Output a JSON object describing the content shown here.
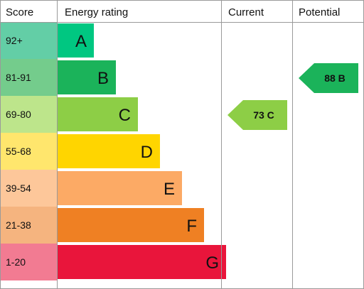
{
  "headers": {
    "score": "Score",
    "energy_rating": "Energy rating",
    "current": "Current",
    "potential": "Potential"
  },
  "chart_data": {
    "type": "bar",
    "bands": [
      {
        "letter": "A",
        "range": "92+",
        "min": 92,
        "max": 100,
        "color": "#00c781",
        "score_bg": "#63cea6"
      },
      {
        "letter": "B",
        "range": "81-91",
        "min": 81,
        "max": 91,
        "color": "#1bb35a",
        "score_bg": "#74cc8c"
      },
      {
        "letter": "C",
        "range": "69-80",
        "min": 69,
        "max": 80,
        "color": "#8dce46",
        "score_bg": "#bde58b"
      },
      {
        "letter": "D",
        "range": "55-68",
        "min": 55,
        "max": 68,
        "color": "#ffd500",
        "score_bg": "#ffe66d"
      },
      {
        "letter": "E",
        "range": "39-54",
        "min": 39,
        "max": 54,
        "color": "#fcaa65",
        "score_bg": "#fdc79a"
      },
      {
        "letter": "F",
        "range": "21-38",
        "min": 21,
        "max": 38,
        "color": "#ef8023",
        "score_bg": "#f5b47f"
      },
      {
        "letter": "G",
        "range": "1-20",
        "min": 1,
        "max": 20,
        "color": "#e9153b",
        "score_bg": "#f27b92"
      }
    ],
    "current": {
      "value": 73,
      "band": "C",
      "label": "73 C",
      "color": "#8dce46"
    },
    "potential": {
      "value": 88,
      "band": "B",
      "label": "88 B",
      "color": "#1bb35a"
    }
  }
}
